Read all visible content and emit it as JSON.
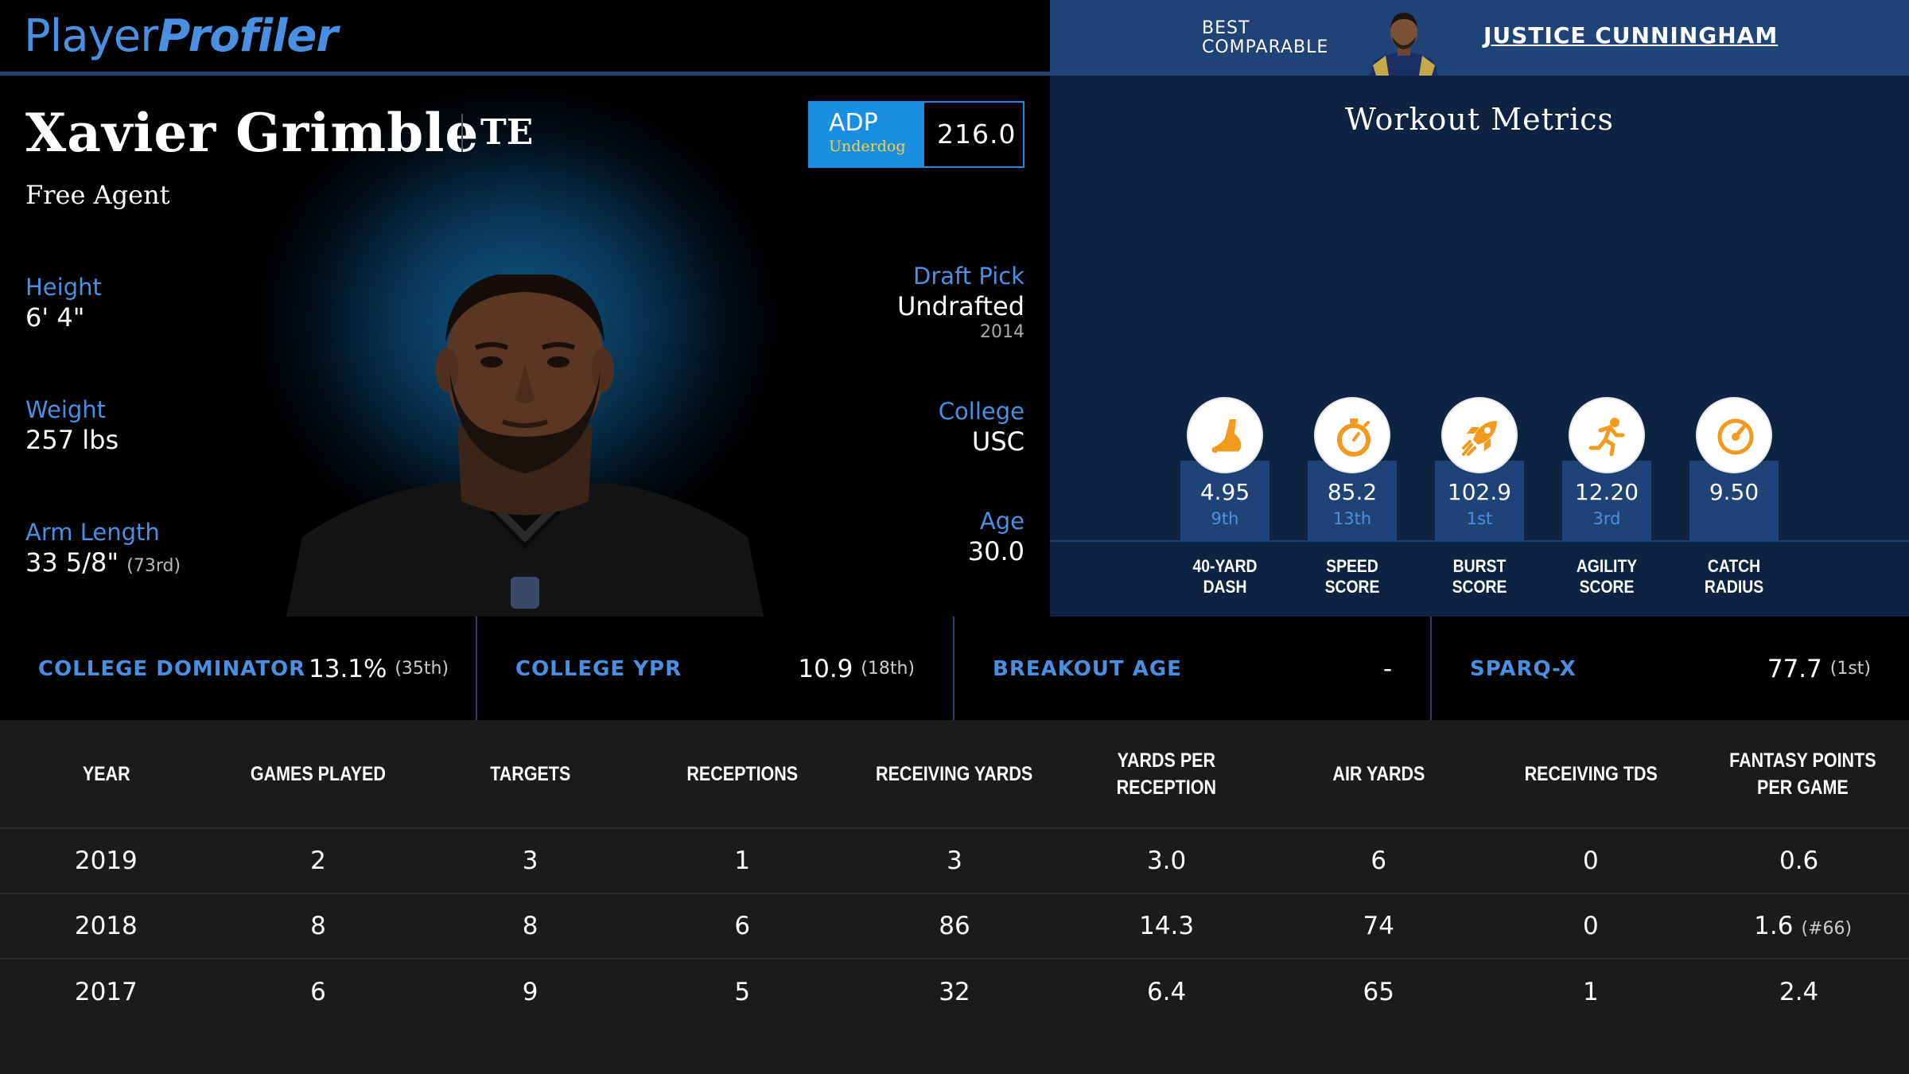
{
  "logo": {
    "part1": "Player",
    "part2": "Profiler"
  },
  "best_comparable": {
    "label_line1": "BEST",
    "label_line2": "COMPARABLE",
    "name": "JUSTICE CUNNINGHAM"
  },
  "player": {
    "name": "Xavier Grimble",
    "position": "TE",
    "team": "Free Agent",
    "adp": {
      "label": "ADP",
      "source": "Underdog",
      "value": "216.0"
    },
    "height": {
      "label": "Height",
      "value": "6' 4\""
    },
    "weight": {
      "label": "Weight",
      "value": "257 lbs"
    },
    "arm_length": {
      "label": "Arm Length",
      "value": "33 5/8\"",
      "rank": "(73rd)"
    },
    "draft_pick": {
      "label": "Draft Pick",
      "value": "Undrafted",
      "year": "2014"
    },
    "college": {
      "label": "College",
      "value": "USC"
    },
    "age": {
      "label": "Age",
      "value": "30.0"
    }
  },
  "workout": {
    "title": "Workout Metrics",
    "metrics": [
      {
        "icon": "shoe-icon",
        "value": "4.95",
        "rank": "9th",
        "label1": "40-YARD",
        "label2": "DASH"
      },
      {
        "icon": "stopwatch-icon",
        "value": "85.2",
        "rank": "13th",
        "label1": "SPEED",
        "label2": "SCORE"
      },
      {
        "icon": "rocket-icon",
        "value": "102.9",
        "rank": "1st",
        "label1": "BURST",
        "label2": "SCORE"
      },
      {
        "icon": "runner-icon",
        "value": "12.20",
        "rank": "3rd",
        "label1": "AGILITY",
        "label2": "SCORE"
      },
      {
        "icon": "target-icon",
        "value": "9.50",
        "rank": "",
        "label1": "CATCH",
        "label2": "RADIUS"
      }
    ]
  },
  "advanced": [
    {
      "label": "COLLEGE DOMINATOR",
      "value": "13.1%",
      "rank": "(35th)"
    },
    {
      "label": "COLLEGE YPR",
      "value": "10.9",
      "rank": "(18th)"
    },
    {
      "label": "BREAKOUT AGE",
      "value": "-",
      "rank": ""
    },
    {
      "label": "SPARQ-X",
      "value": "77.7",
      "rank": "(1st)"
    }
  ],
  "table": {
    "headers": [
      "YEAR",
      "GAMES PLAYED",
      "TARGETS",
      "RECEPTIONS",
      "RECEIVING YARDS",
      "YARDS PER RECEPTION",
      "AIR YARDS",
      "RECEIVING TDS",
      "FANTASY POINTS PER GAME"
    ],
    "rows": [
      [
        "2019",
        "2",
        "3",
        "1",
        "3",
        "3.0",
        "6",
        "0",
        "0.6",
        ""
      ],
      [
        "2018",
        "8",
        "8",
        "6",
        "86",
        "14.3",
        "74",
        "0",
        "1.6",
        "(#66)"
      ],
      [
        "2017",
        "6",
        "9",
        "5",
        "32",
        "6.4",
        "65",
        "1",
        "2.4",
        ""
      ]
    ]
  },
  "colors": {
    "accent_blue": "#4a90e2",
    "header_blue": "#1f4277",
    "icon_orange": "#f29a1d",
    "adp_yellow": "#f5d23c"
  }
}
